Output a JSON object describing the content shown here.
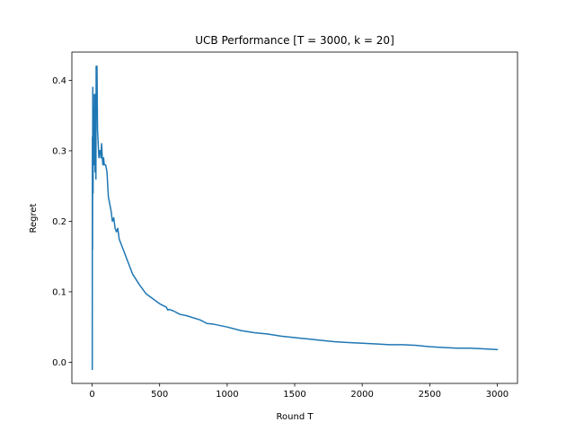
{
  "chart_data": {
    "type": "line",
    "title": "UCB Performance [T = 3000, k = 20]",
    "xlabel": "Round T",
    "ylabel": "Regret",
    "xlim": [
      -150,
      3150
    ],
    "ylim": [
      -0.03,
      0.44
    ],
    "xticks": [
      0,
      500,
      1000,
      1500,
      2000,
      2500,
      3000
    ],
    "yticks": [
      0.0,
      0.1,
      0.2,
      0.3,
      0.4
    ],
    "xtick_labels": [
      "0",
      "500",
      "1000",
      "1500",
      "2000",
      "2500",
      "3000"
    ],
    "ytick_labels": [
      "0.0",
      "0.1",
      "0.2",
      "0.3",
      "0.4"
    ],
    "grid": false,
    "series": [
      {
        "color": "#1f77b4",
        "x": [
          1,
          2,
          3,
          4,
          5,
          6,
          7,
          8,
          9,
          10,
          12,
          14,
          16,
          18,
          20,
          22,
          25,
          28,
          30,
          33,
          36,
          40,
          45,
          50,
          55,
          60,
          65,
          70,
          75,
          80,
          85,
          90,
          100,
          110,
          120,
          130,
          140,
          150,
          160,
          170,
          180,
          190,
          200,
          220,
          240,
          260,
          280,
          300,
          350,
          400,
          450,
          500,
          550,
          560,
          570,
          600,
          650,
          700,
          800,
          850,
          900,
          1000,
          1100,
          1200,
          1300,
          1400,
          1500,
          1600,
          1700,
          1800,
          1900,
          2000,
          2100,
          2200,
          2300,
          2400,
          2500,
          2600,
          2700,
          2800,
          2900,
          3000
        ],
        "y": [
          -0.01,
          0.32,
          0.16,
          0.31,
          0.39,
          0.26,
          0.24,
          0.37,
          0.38,
          0.3,
          0.35,
          0.28,
          0.36,
          0.3,
          0.38,
          0.27,
          0.33,
          0.26,
          0.42,
          0.38,
          0.42,
          0.33,
          0.31,
          0.29,
          0.3,
          0.3,
          0.29,
          0.31,
          0.29,
          0.28,
          0.29,
          0.28,
          0.28,
          0.27,
          0.235,
          0.225,
          0.215,
          0.2,
          0.205,
          0.19,
          0.185,
          0.19,
          0.175,
          0.165,
          0.155,
          0.145,
          0.135,
          0.125,
          0.11,
          0.097,
          0.09,
          0.083,
          0.078,
          0.074,
          0.075,
          0.073,
          0.068,
          0.066,
          0.06,
          0.055,
          0.054,
          0.05,
          0.045,
          0.042,
          0.04,
          0.037,
          0.035,
          0.033,
          0.031,
          0.029,
          0.028,
          0.027,
          0.026,
          0.025,
          0.025,
          0.024,
          0.022,
          0.021,
          0.02,
          0.02,
          0.019,
          0.018
        ]
      }
    ]
  }
}
